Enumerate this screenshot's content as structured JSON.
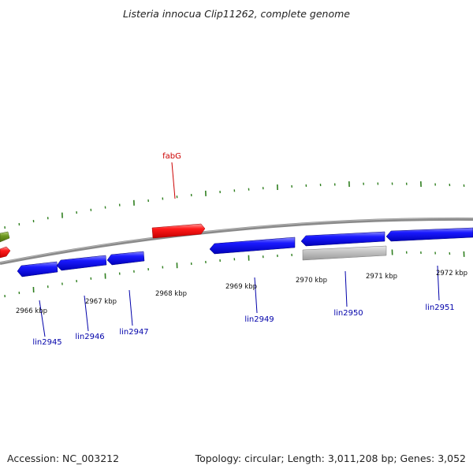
{
  "title": "Listeria innocua Clip11262, complete genome",
  "accession": "Accession: NC_003212",
  "summary": "Topology: circular; Length: 3,011,208 bp; Genes: 3,052",
  "colors": {
    "backbone": "#8a8a8a",
    "tick": "#2f7f1f",
    "forward_gene": "#ff0000",
    "reverse_gene": "#0000ff",
    "olive_gene": "#6f9a22",
    "gray_gene": "#c0c0c0",
    "label_forward": "#cc0000",
    "label_reverse": "#0000aa"
  },
  "scale_labels": [
    "2966 kbp",
    "2967 kbp",
    "2968 kbp",
    "2969 kbp",
    "2970 kbp",
    "2971 kbp",
    "2972 kbp"
  ],
  "gene_labels": [
    {
      "name": "fabG",
      "strand": "forward"
    },
    {
      "name": "lin2945",
      "strand": "reverse"
    },
    {
      "name": "lin2946",
      "strand": "reverse"
    },
    {
      "name": "lin2947",
      "strand": "reverse"
    },
    {
      "name": "lin2949",
      "strand": "reverse"
    },
    {
      "name": "lin2950",
      "strand": "reverse"
    },
    {
      "name": "lin2951",
      "strand": "reverse"
    }
  ]
}
